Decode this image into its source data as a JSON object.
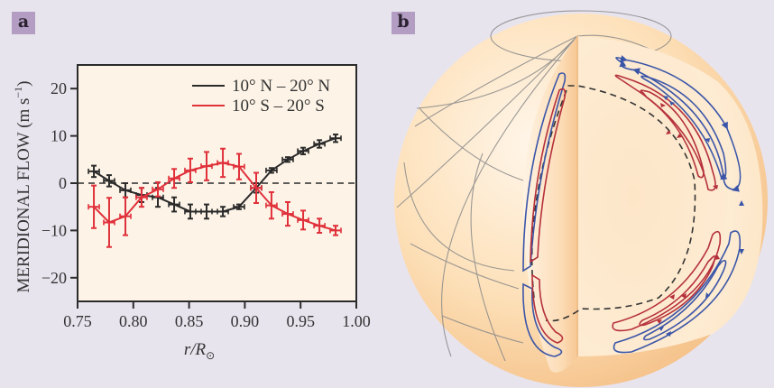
{
  "panels": {
    "a_label": "a",
    "b_label": "b"
  },
  "colors": {
    "north": "#2b2b2b",
    "south": "#e0303a",
    "plot_bg": "#fdf4e7",
    "page_bg": "#e8e4ee",
    "flow_red": "#b5303a",
    "flow_blue": "#3a55a8"
  },
  "chart_data": {
    "type": "line",
    "title": "",
    "xlabel": "r/R",
    "xlabel_sub": "⊙",
    "ylabel": "MERIDIONAL FLOW (m s",
    "ylabel_sup": "−1",
    "ylabel_close": ")",
    "xlim": [
      0.75,
      1.0
    ],
    "ylim": [
      -25,
      25
    ],
    "xticks": [
      0.75,
      0.8,
      0.85,
      0.9,
      0.95,
      1.0
    ],
    "xtick_labels": [
      "0.75",
      "0.80",
      "0.85",
      "0.90",
      "0.95",
      "1.00"
    ],
    "yticks": [
      -20,
      -10,
      0,
      10,
      20
    ],
    "ytick_labels": [
      "−20",
      "−10",
      "0",
      "10",
      "20"
    ],
    "zero_line": "dashed",
    "legend_position": "top-right",
    "x": [
      0.7646,
      0.7783,
      0.7929,
      0.8074,
      0.822,
      0.8366,
      0.8511,
      0.8657,
      0.8803,
      0.8948,
      0.9102,
      0.9239,
      0.9385,
      0.9523,
      0.9669,
      0.9814
    ],
    "series": [
      {
        "name": "10° N – 20° N",
        "color_key": "north",
        "values": [
          2.5,
          0.5,
          -1.5,
          -2.5,
          -3.0,
          -4.5,
          -6.0,
          -6.0,
          -6.0,
          -5.0,
          -1.0,
          2.7,
          5.0,
          6.8,
          8.3,
          9.5
        ],
        "errors": [
          1.2,
          1.2,
          1.5,
          1.5,
          2.0,
          1.5,
          1.5,
          1.5,
          1.0,
          0.5,
          1.0,
          0.5,
          0.5,
          0.7,
          0.8,
          0.8
        ]
      },
      {
        "name": "10° S – 20° S",
        "color_key": "south",
        "values": [
          -5.0,
          -8.3,
          -7.0,
          -3.0,
          -1.3,
          1.0,
          2.7,
          3.6,
          4.3,
          3.5,
          -1.0,
          -4.7,
          -6.5,
          -7.8,
          -9.0,
          -10.0
        ],
        "errors": [
          4.5,
          5.2,
          4.0,
          2.0,
          1.5,
          2.0,
          2.5,
          3.0,
          3.0,
          2.7,
          3.2,
          2.8,
          2.5,
          2.0,
          1.5,
          1.0
        ]
      }
    ]
  },
  "diagram": {
    "description": "Cutaway solar sphere showing meridional circulation cells",
    "north_cells_outer_color": "flow_blue",
    "north_cells_inner_color": "flow_red"
  }
}
